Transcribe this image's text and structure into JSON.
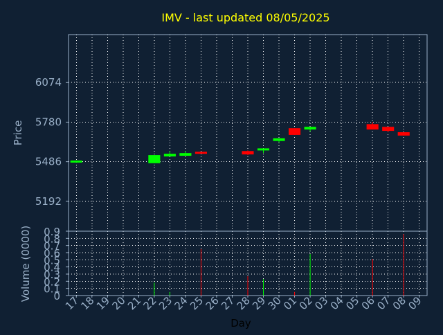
{
  "title": "IMV - last updated 08/05/2025",
  "colors": {
    "background": "#102033",
    "axis": "#9ab0c8",
    "grid": "#ffffff",
    "title": "#ffff00",
    "up": "#00ff00",
    "down": "#ff0000"
  },
  "chart_data": [
    {
      "type": "candlestick",
      "ylabel": "Price",
      "ylim": [
        4970,
        6430
      ],
      "yticks": [
        6074,
        5780,
        5486,
        5192
      ],
      "grid": true,
      "x": [
        "17",
        "18",
        "19",
        "20",
        "21",
        "22",
        "23",
        "24",
        "25",
        "26",
        "27",
        "28",
        "29",
        "30",
        "01",
        "02",
        "03",
        "04",
        "05",
        "06",
        "07",
        "08",
        "09"
      ],
      "candles": [
        {
          "day": "17",
          "open": 5480,
          "close": 5495,
          "high": 5495,
          "low": 5480,
          "dir": "up"
        },
        {
          "day": "22",
          "open": 5475,
          "close": 5535,
          "high": 5535,
          "low": 5475,
          "dir": "up"
        },
        {
          "day": "23",
          "open": 5525,
          "close": 5545,
          "high": 5565,
          "low": 5525,
          "dir": "up"
        },
        {
          "day": "24",
          "open": 5530,
          "close": 5550,
          "high": 5565,
          "low": 5530,
          "dir": "up"
        },
        {
          "day": "25",
          "open": 5560,
          "close": 5550,
          "high": 5560,
          "low": 5550,
          "dir": "down"
        },
        {
          "day": "28",
          "open": 5565,
          "close": 5540,
          "high": 5570,
          "low": 5535,
          "dir": "down"
        },
        {
          "day": "29",
          "open": 5570,
          "close": 5585,
          "high": 5585,
          "low": 5550,
          "dir": "up"
        },
        {
          "day": "30",
          "open": 5640,
          "close": 5660,
          "high": 5660,
          "low": 5630,
          "dir": "up"
        },
        {
          "day": "01",
          "open": 5735,
          "close": 5685,
          "high": 5735,
          "low": 5685,
          "dir": "down"
        },
        {
          "day": "02",
          "open": 5725,
          "close": 5745,
          "high": 5745,
          "low": 5710,
          "dir": "up"
        },
        {
          "day": "06",
          "open": 5765,
          "close": 5725,
          "high": 5780,
          "low": 5725,
          "dir": "down"
        },
        {
          "day": "07",
          "open": 5745,
          "close": 5715,
          "high": 5745,
          "low": 5705,
          "dir": "down"
        },
        {
          "day": "08",
          "open": 5705,
          "close": 5680,
          "high": 5705,
          "low": 5680,
          "dir": "down"
        }
      ]
    },
    {
      "type": "bar",
      "ylabel": "Volume (0000)",
      "xlabel": "Day",
      "ylim": [
        0,
        0.9
      ],
      "yticks": [
        "0",
        "0.1",
        "0.2",
        "0.3",
        "0.4",
        "0.5",
        "0.6",
        "0.7",
        "0.8",
        "0.9"
      ],
      "grid": true,
      "bars": [
        {
          "day": "22",
          "value": 0.18,
          "dir": "up"
        },
        {
          "day": "23",
          "value": 0.05,
          "dir": "up"
        },
        {
          "day": "25",
          "value": 0.65,
          "dir": "down"
        },
        {
          "day": "28",
          "value": 0.27,
          "dir": "down"
        },
        {
          "day": "29",
          "value": 0.23,
          "dir": "up"
        },
        {
          "day": "01",
          "value": 0.05,
          "dir": "down"
        },
        {
          "day": "02",
          "value": 0.58,
          "dir": "up"
        },
        {
          "day": "06",
          "value": 0.51,
          "dir": "down"
        },
        {
          "day": "08",
          "value": 0.86,
          "dir": "down"
        }
      ]
    }
  ]
}
